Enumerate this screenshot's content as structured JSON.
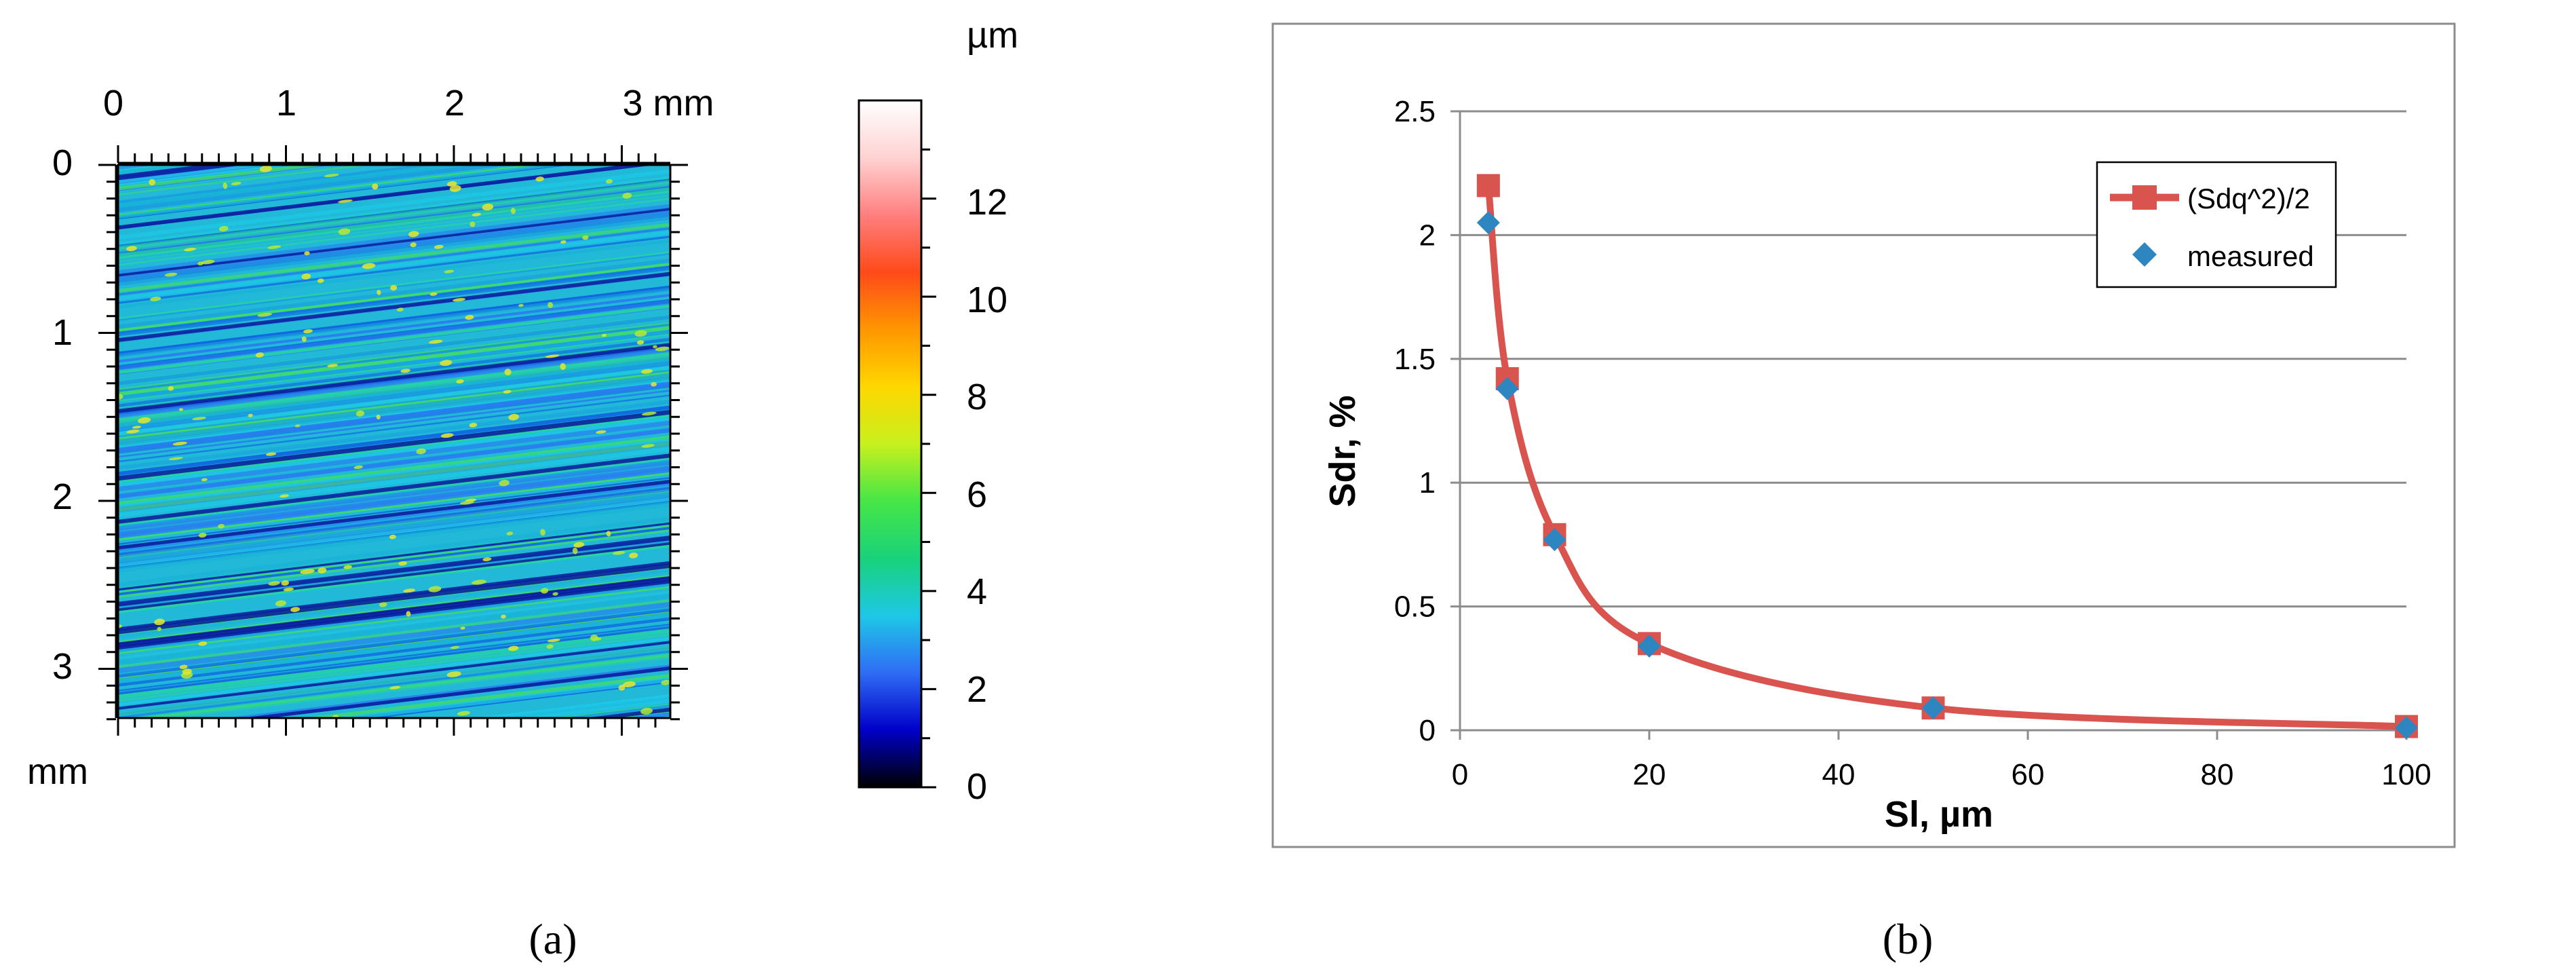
{
  "panel_a": {
    "caption": "(a)",
    "x_ticks": [
      "0",
      "1",
      "2",
      "3 mm"
    ],
    "y_ticks": [
      "0",
      "1",
      "2",
      "3"
    ],
    "y_unit": "mm",
    "colorbar_unit": "µm",
    "colorbar_ticks": [
      "0",
      "2",
      "4",
      "6",
      "8",
      "10",
      "12"
    ],
    "colors": {
      "colormap": [
        "#000000",
        "#0000c8",
        "#2f6cf5",
        "#1ec8e6",
        "#19d27a",
        "#46e646",
        "#c8f01e",
        "#ffd700",
        "#ff9600",
        "#ff4a1a",
        "#ff7f7f",
        "#ffd2d2",
        "#ffffff"
      ],
      "surface_base": "#22b8d8"
    }
  },
  "panel_b": {
    "caption": "(b)",
    "chart_data": {
      "type": "line",
      "xlabel": "Sl, µm",
      "ylabel": "Sdr, %",
      "xlim": [
        0,
        100
      ],
      "ylim": [
        0,
        2.5
      ],
      "x_ticks": [
        "0",
        "20",
        "40",
        "60",
        "80",
        "100"
      ],
      "y_ticks": [
        "0",
        "0.5",
        "1",
        "1.5",
        "2",
        "2.5"
      ],
      "grid": "horizontal",
      "legend_position": "top-right",
      "series": [
        {
          "name": "(Sdq^2)/2",
          "marker": "square",
          "color": "#d9534f",
          "x": [
            3,
            5,
            10,
            20,
            50,
            100
          ],
          "y": [
            2.2,
            1.42,
            0.79,
            0.35,
            0.09,
            0.015
          ]
        },
        {
          "name": "measured",
          "marker": "diamond",
          "color": "#2e86c1",
          "x": [
            3,
            5,
            10,
            20,
            50,
            100
          ],
          "y": [
            2.05,
            1.38,
            0.77,
            0.34,
            0.09,
            0.01
          ]
        }
      ]
    }
  }
}
